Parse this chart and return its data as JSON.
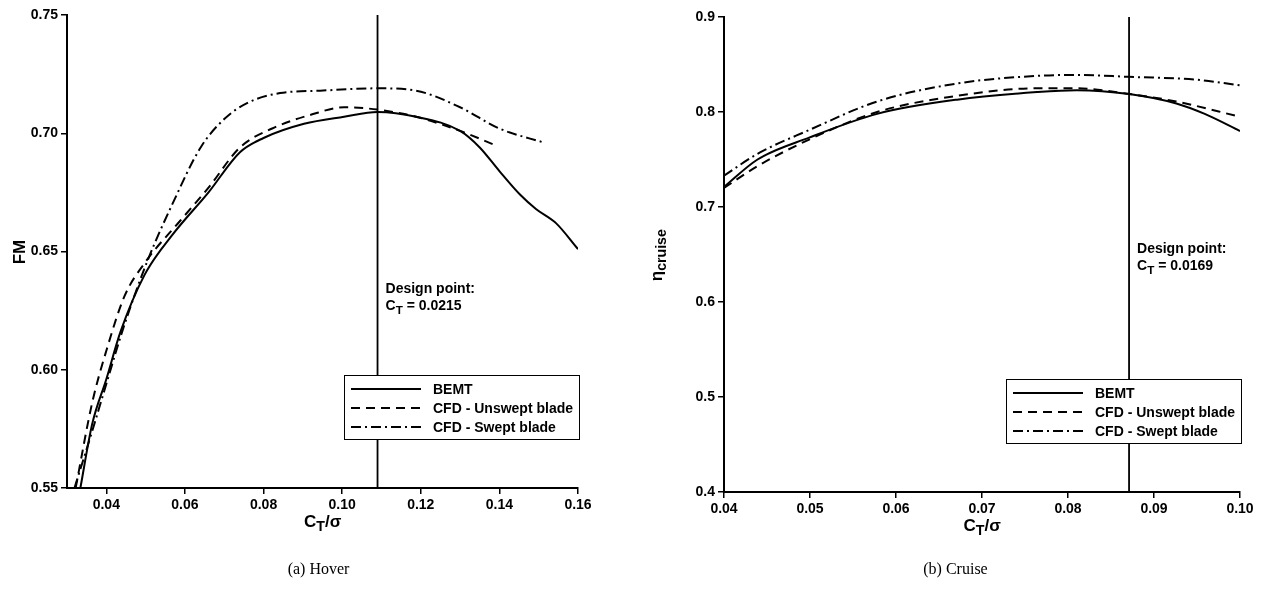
{
  "chart_data": [
    {
      "type": "line",
      "title": "(a) Hover",
      "xlabel": "C$_{T}$/σ",
      "ylabel": "FM",
      "xlim": [
        0.03,
        0.16
      ],
      "ylim": [
        0.55,
        0.75
      ],
      "xticks": [
        0.04,
        0.06,
        0.08,
        {
          "value": 0.1,
          "label": "0.10"
        },
        0.12,
        0.14,
        0.16
      ],
      "yticks": [
        0.55,
        {
          "value": 0.6,
          "label": "0.60"
        },
        0.65,
        {
          "value": 0.7,
          "label": "0.70"
        },
        0.75
      ],
      "legend": "bottom right",
      "marker": "none",
      "ref_lines": [
        {
          "axis": "x",
          "value": 0.109,
          "color": "#000000"
        }
      ],
      "annotations": [
        "Design point:",
        "C$_{T}$ = 0.0215"
      ],
      "series": [
        {
          "name": "BEMT",
          "color": "#000000",
          "line_style": "solid",
          "x": [
            0.0334,
            0.0364,
            0.04,
            0.0436,
            0.0497,
            0.0568,
            0.066,
            0.074,
            0.08,
            0.0903,
            0.1005,
            0.109,
            0.1188,
            0.13,
            0.135,
            0.14,
            0.1453,
            0.1493,
            0.1544,
            0.16
          ],
          "values": [
            0.55,
            0.577,
            0.596,
            0.616,
            0.64,
            0.657,
            0.675,
            0.692,
            0.698,
            0.704,
            0.707,
            0.709,
            0.707,
            0.701,
            0.694,
            0.684,
            0.674,
            0.668,
            0.662,
            0.651
          ]
        },
        {
          "name": "CFD - Unswept blade",
          "color": "#000000",
          "line_style": "dashed",
          "x": [
            0.0322,
            0.0364,
            0.04,
            0.0446,
            0.0497,
            0.0588,
            0.066,
            0.074,
            0.0822,
            0.0924,
            0.1005,
            0.109,
            0.1188,
            0.13,
            0.1389
          ],
          "values": [
            0.55,
            0.586,
            0.608,
            0.631,
            0.645,
            0.663,
            0.677,
            0.694,
            0.702,
            0.708,
            0.711,
            0.71,
            0.707,
            0.701,
            0.695
          ]
        },
        {
          "name": "CFD - Swept blade",
          "color": "#000000",
          "line_style": "dashdot",
          "x": [
            0.0319,
            0.0364,
            0.04,
            0.0446,
            0.0507,
            0.0568,
            0.064,
            0.07,
            0.0761,
            0.0842,
            0.0944,
            0.109,
            0.1188,
            0.13,
            0.14,
            0.1514
          ],
          "values": [
            0.55,
            0.574,
            0.594,
            0.619,
            0.647,
            0.67,
            0.694,
            0.706,
            0.713,
            0.717,
            0.718,
            0.719,
            0.718,
            0.711,
            0.702,
            0.696
          ]
        }
      ]
    },
    {
      "type": "line",
      "title": "(b) Cruise",
      "xlabel": "C$_{T}$/σ",
      "ylabel": "η$_{cruise}$",
      "xlim": [
        0.04,
        0.1
      ],
      "ylim": [
        0.4,
        0.9
      ],
      "xticks": [
        0.04,
        0.05,
        0.06,
        0.07,
        0.08,
        0.09,
        {
          "value": 0.1,
          "label": "0.10"
        }
      ],
      "yticks": [
        0.4,
        0.5,
        0.6,
        0.7,
        0.8,
        0.9
      ],
      "legend": "bottom right",
      "marker": "none",
      "ref_lines": [
        {
          "axis": "x",
          "value": 0.0871,
          "color": "#000000"
        }
      ],
      "annotations": [
        "Design point:",
        "C$_{T}$ = 0.0169"
      ],
      "series": [
        {
          "name": "BEMT",
          "color": "#000000",
          "line_style": "solid",
          "x": [
            0.04,
            0.0439,
            0.0499,
            0.0578,
            0.0671,
            0.0764,
            0.081,
            0.0871,
            0.0926,
            0.0959,
            0.1
          ],
          "values": [
            0.721,
            0.75,
            0.773,
            0.798,
            0.813,
            0.821,
            0.823,
            0.819,
            0.809,
            0.798,
            0.78
          ]
        },
        {
          "name": "CFD - Unswept blade",
          "color": "#000000",
          "line_style": "dashed",
          "x": [
            0.04,
            0.0439,
            0.0499,
            0.0578,
            0.0671,
            0.0764,
            0.081,
            0.0871,
            0.0926,
            0.1
          ],
          "values": [
            0.72,
            0.743,
            0.771,
            0.8,
            0.817,
            0.825,
            0.825,
            0.819,
            0.811,
            0.795
          ]
        },
        {
          "name": "CFD - Swept blade",
          "color": "#000000",
          "line_style": "dashdot",
          "x": [
            0.04,
            0.0439,
            0.0499,
            0.0578,
            0.0671,
            0.0764,
            0.081,
            0.0871,
            0.095,
            0.1
          ],
          "values": [
            0.733,
            0.756,
            0.781,
            0.811,
            0.83,
            0.838,
            0.839,
            0.837,
            0.834,
            0.828
          ]
        }
      ]
    }
  ]
}
